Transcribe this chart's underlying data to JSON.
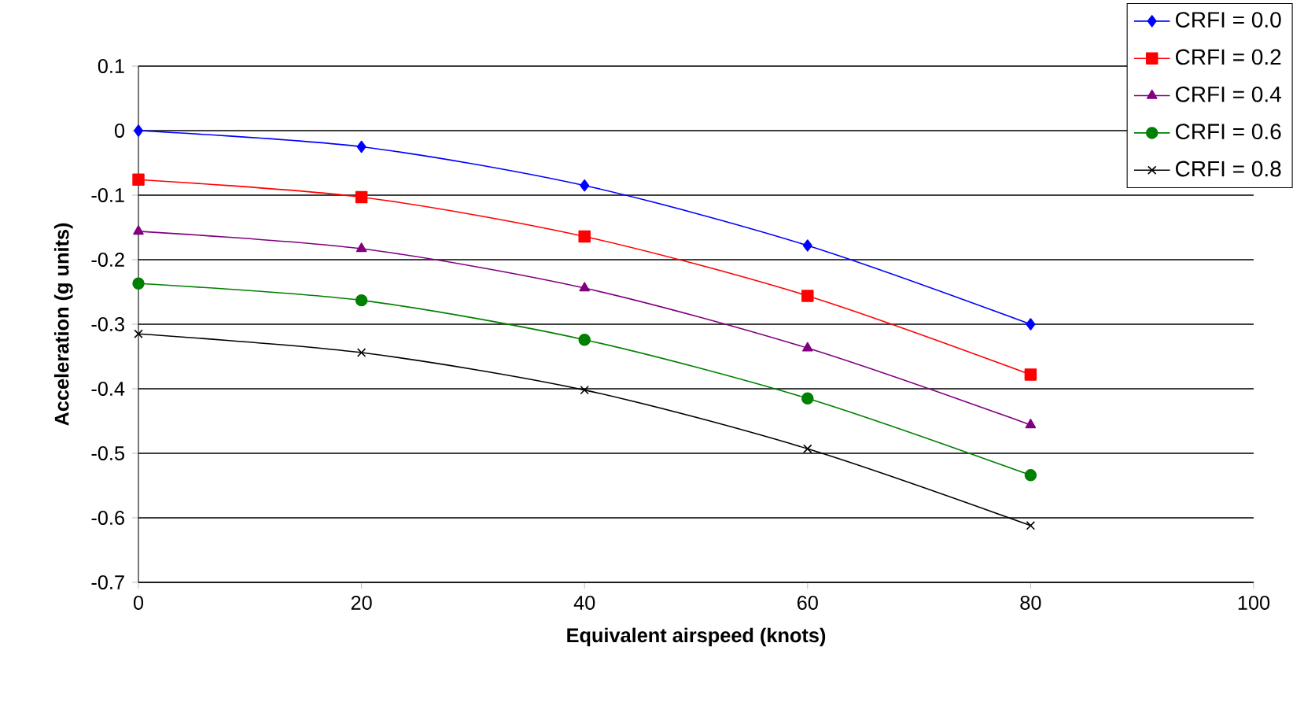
{
  "chart_data": {
    "type": "line",
    "xlabel": "Equivalent airspeed (knots)",
    "ylabel": "Acceleration (g units)",
    "x": [
      0,
      20,
      40,
      60,
      80
    ],
    "series": [
      {
        "name": "CRFI = 0.0",
        "color": "#0000ff",
        "marker": "diamond",
        "values": [
          0.0,
          -0.025,
          -0.085,
          -0.178,
          -0.3
        ]
      },
      {
        "name": "CRFI = 0.2",
        "color": "#ff0000",
        "marker": "square",
        "values": [
          -0.076,
          -0.103,
          -0.164,
          -0.256,
          -0.378
        ]
      },
      {
        "name": "CRFI = 0.4",
        "color": "#800080",
        "marker": "triangle",
        "values": [
          -0.156,
          -0.183,
          -0.244,
          -0.337,
          -0.456
        ]
      },
      {
        "name": "CRFI = 0.6",
        "color": "#008000",
        "marker": "circle",
        "values": [
          -0.237,
          -0.263,
          -0.324,
          -0.415,
          -0.534
        ]
      },
      {
        "name": "CRFI = 0.8",
        "color": "#000000",
        "marker": "cross",
        "values": [
          -0.315,
          -0.344,
          -0.402,
          -0.493,
          -0.612
        ]
      }
    ],
    "xlim": [
      0,
      100
    ],
    "xticks": [
      0,
      20,
      40,
      60,
      80,
      100
    ],
    "ylim": [
      -0.7,
      0.1
    ],
    "yticks": [
      -0.7,
      -0.6,
      -0.5,
      -0.4,
      -0.3,
      -0.2,
      -0.1,
      0,
      0.1
    ],
    "grid": "y",
    "legend": "top right",
    "line_style": "solid"
  }
}
